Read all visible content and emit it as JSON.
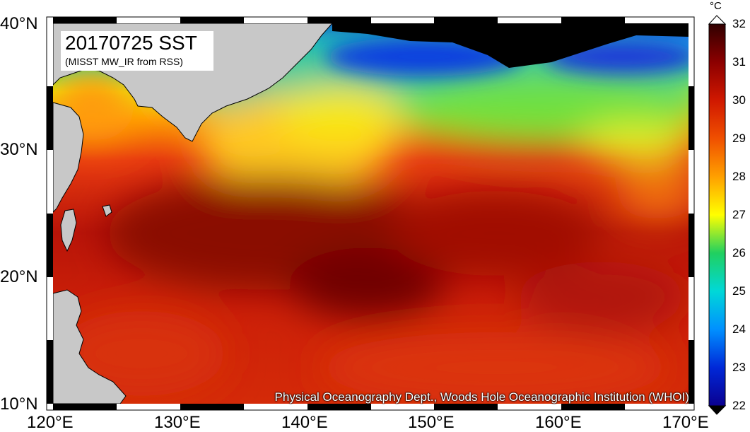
{
  "map": {
    "title": "20170725 SST",
    "subtitle": "(MISST MW_IR from RSS)",
    "credit": "Physical Oceanography Dept., Woods Hole Oceanographic Institution (WHOI)",
    "lat_labels": [
      "40°N",
      "30°N",
      "20°N",
      "10°N"
    ],
    "lon_labels": [
      "120°E",
      "130°E",
      "140°E",
      "150°E",
      "160°E",
      "170°E"
    ],
    "lon_range": [
      120,
      170
    ],
    "lat_range": [
      10,
      40
    ],
    "land_color": "#c8c8c8",
    "nodata_color": "#000000"
  },
  "colorbar": {
    "unit": "°C",
    "min": 22,
    "max": 32,
    "ticks": [
      "32",
      "31",
      "30",
      "29",
      "28",
      "27",
      "26",
      "25",
      "24",
      "23",
      "22"
    ],
    "palette": [
      "#0a0090",
      "#0028d8",
      "#0090ff",
      "#00d8d8",
      "#20d060",
      "#a8e000",
      "#ffff00",
      "#ffc000",
      "#ff7000",
      "#e02000",
      "#a00000",
      "#300000"
    ]
  }
}
